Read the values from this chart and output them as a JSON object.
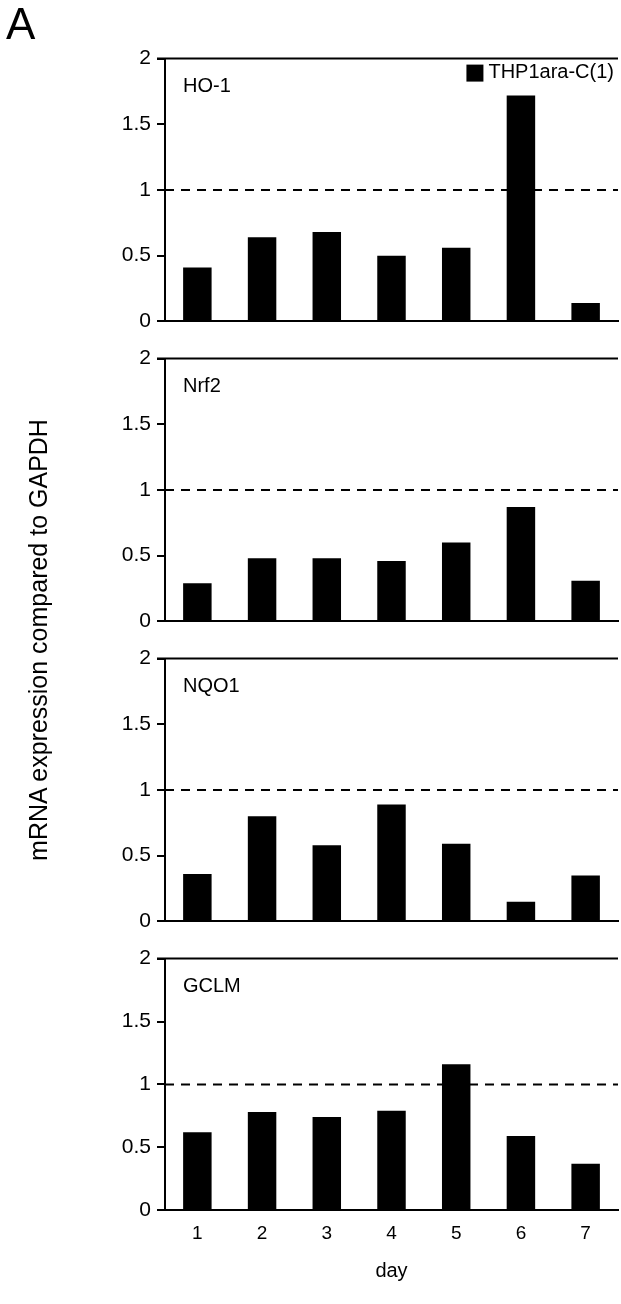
{
  "chart_data": [
    {
      "type": "bar",
      "title": "A",
      "categories": [
        "1",
        "2",
        "3",
        "4",
        "5",
        "6",
        "7"
      ],
      "series": [
        {
          "name": "THP1ara-C(1)",
          "color": "#000000",
          "values": [
            0.41,
            0.64,
            0.68,
            0.5,
            0.56,
            1.72,
            0.14
          ]
        }
      ],
      "ylim": [
        0,
        2
      ],
      "yticks": [
        0,
        0.5,
        1,
        1.5,
        2
      ],
      "ref_lines": [
        {
          "axis": "y",
          "value": 1,
          "line_style": "dashed",
          "color": "#000000"
        }
      ],
      "annotations": [
        "HO-1"
      ],
      "legend": "top right",
      "tick_labels": "y"
    },
    {
      "type": "bar",
      "ylabel": "mRNA expression compared to GAPDH",
      "categories": [
        "1",
        "2",
        "3",
        "4",
        "5",
        "6",
        "7"
      ],
      "series": [
        {
          "color": "#000000",
          "values": [
            0.29,
            0.48,
            0.48,
            0.46,
            0.6,
            0.87,
            0.31
          ]
        }
      ],
      "ylim": [
        0,
        2
      ],
      "yticks": [
        0,
        0.5,
        1,
        1.5,
        2
      ],
      "ref_lines": [
        {
          "axis": "y",
          "value": 1,
          "line_style": "dashed",
          "color": "#000000"
        }
      ],
      "annotations": [
        "Nrf2"
      ],
      "tick_labels": "y"
    },
    {
      "type": "bar",
      "categories": [
        "1",
        "2",
        "3",
        "4",
        "5",
        "6",
        "7"
      ],
      "series": [
        {
          "color": "#000000",
          "values": [
            0.36,
            0.8,
            0.58,
            0.89,
            0.59,
            0.15,
            0.35
          ]
        }
      ],
      "ylim": [
        0,
        2
      ],
      "yticks": [
        0,
        0.5,
        1,
        1.5,
        2
      ],
      "ref_lines": [
        {
          "axis": "y",
          "value": 1,
          "line_style": "dashed",
          "color": "#000000"
        }
      ],
      "annotations": [
        "NQO1"
      ],
      "tick_labels": "y"
    },
    {
      "type": "bar",
      "xlabel": "day",
      "categories": [
        "1",
        "2",
        "3",
        "4",
        "5",
        "6",
        "7"
      ],
      "series": [
        {
          "color": "#000000",
          "values": [
            0.62,
            0.78,
            0.74,
            0.79,
            1.16,
            0.59,
            0.37
          ]
        }
      ],
      "ylim": [
        0,
        2
      ],
      "yticks": [
        0,
        0.5,
        1,
        1.5,
        2
      ],
      "ref_lines": [
        {
          "axis": "y",
          "value": 1,
          "line_style": "dashed",
          "color": "#000000"
        }
      ],
      "annotations": [
        "GCLM"
      ]
    }
  ]
}
